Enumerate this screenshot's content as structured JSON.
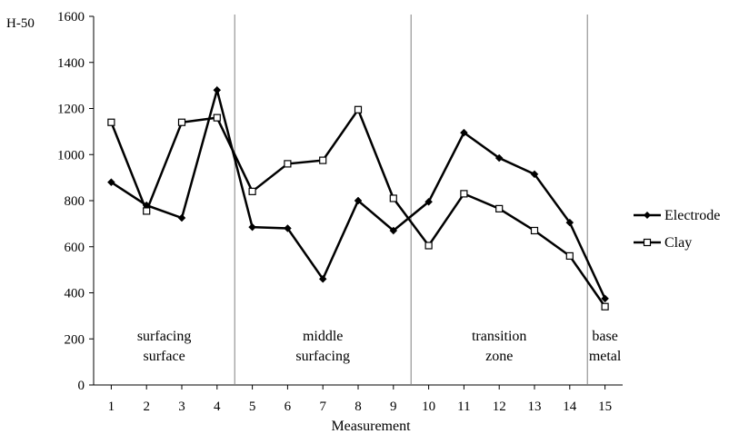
{
  "chart_data": {
    "type": "line",
    "ylabel": "H-50",
    "xlabel": "Measurement",
    "x": [
      1,
      2,
      3,
      4,
      5,
      6,
      7,
      8,
      9,
      10,
      11,
      12,
      13,
      14,
      15
    ],
    "ylim": [
      0,
      1600
    ],
    "yticks": [
      0,
      200,
      400,
      600,
      800,
      1000,
      1200,
      1400,
      1600
    ],
    "grid": false,
    "legend_position": "right",
    "series": [
      {
        "name": "Electrode",
        "marker": "diamond",
        "values": [
          880,
          780,
          725,
          1280,
          685,
          680,
          460,
          800,
          670,
          795,
          1095,
          985,
          915,
          705,
          375
        ]
      },
      {
        "name": "Clay",
        "marker": "square",
        "values": [
          1140,
          755,
          1140,
          1160,
          840,
          960,
          975,
          1195,
          810,
          605,
          830,
          765,
          670,
          560,
          340
        ]
      }
    ],
    "dividers_after_x": [
      4,
      9,
      14
    ],
    "regions": [
      {
        "lines": [
          "surfacing",
          "surface"
        ]
      },
      {
        "lines": [
          "middle",
          "surfacing"
        ]
      },
      {
        "lines": [
          "transition",
          "zone"
        ]
      },
      {
        "lines": [
          "base",
          "metal"
        ]
      }
    ]
  }
}
